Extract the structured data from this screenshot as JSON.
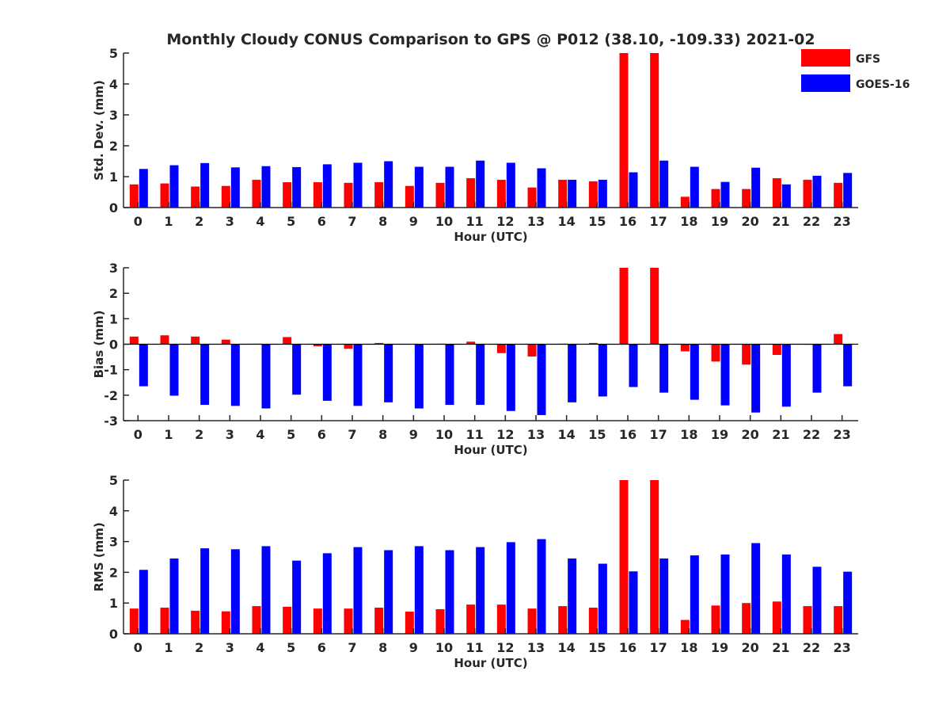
{
  "figure_title": "Monthly Cloudy CONUS Comparison to GPS @ P012 (38.10, -109.33) 2021-02",
  "legend": [
    {
      "name": "GFS",
      "color": "#ff0000"
    },
    {
      "name": "GOES-16",
      "color": "#0000ff"
    }
  ],
  "chart_data": [
    {
      "type": "bar",
      "xlabel": "Hour (UTC)",
      "ylabel": "Std. Dev. (mm)",
      "ylim": [
        0,
        5
      ],
      "yticks": [
        0,
        1,
        2,
        3,
        4,
        5
      ],
      "categories": [
        "0",
        "1",
        "2",
        "3",
        "4",
        "5",
        "6",
        "7",
        "8",
        "9",
        "10",
        "11",
        "12",
        "13",
        "14",
        "15",
        "16",
        "17",
        "18",
        "19",
        "20",
        "21",
        "22",
        "23"
      ],
      "series": [
        {
          "name": "GFS",
          "color": "#ff0000",
          "values": [
            0.75,
            0.78,
            0.68,
            0.7,
            0.9,
            0.82,
            0.82,
            0.8,
            0.82,
            0.7,
            0.8,
            0.95,
            0.9,
            0.65,
            0.9,
            0.85,
            5.0,
            5.0,
            0.35,
            0.6,
            0.6,
            0.95,
            0.9,
            0.8
          ]
        },
        {
          "name": "GOES-16",
          "color": "#0000ff",
          "values": [
            1.25,
            1.37,
            1.44,
            1.3,
            1.34,
            1.31,
            1.4,
            1.45,
            1.5,
            1.32,
            1.32,
            1.52,
            1.45,
            1.27,
            0.9,
            0.9,
            1.14,
            1.52,
            1.32,
            0.83,
            1.29,
            0.75,
            1.03,
            1.12
          ]
        }
      ]
    },
    {
      "type": "bar",
      "xlabel": "Hour (UTC)",
      "ylabel": "Bias (mm)",
      "ylim": [
        -3,
        3
      ],
      "yticks": [
        -3,
        -2,
        -1,
        0,
        1,
        2,
        3
      ],
      "categories": [
        "0",
        "1",
        "2",
        "3",
        "4",
        "5",
        "6",
        "7",
        "8",
        "9",
        "10",
        "11",
        "12",
        "13",
        "14",
        "15",
        "16",
        "17",
        "18",
        "19",
        "20",
        "21",
        "22",
        "23"
      ],
      "series": [
        {
          "name": "GFS",
          "color": "#ff0000",
          "values": [
            0.3,
            0.35,
            0.3,
            0.18,
            0.02,
            0.28,
            -0.08,
            -0.18,
            0.05,
            0.0,
            0.02,
            0.1,
            -0.35,
            -0.48,
            0.02,
            0.05,
            3.0,
            3.0,
            -0.28,
            -0.68,
            -0.8,
            -0.42,
            -0.02,
            0.4
          ]
        },
        {
          "name": "GOES-16",
          "color": "#0000ff",
          "values": [
            -1.65,
            -2.02,
            -2.38,
            -2.42,
            -2.52,
            -1.98,
            -2.22,
            -2.42,
            -2.28,
            -2.52,
            -2.38,
            -2.38,
            -2.62,
            -2.78,
            -2.28,
            -2.05,
            -1.68,
            -1.9,
            -2.18,
            -2.4,
            -2.68,
            -2.45,
            -1.9,
            -1.65
          ]
        }
      ]
    },
    {
      "type": "bar",
      "xlabel": "Hour (UTC)",
      "ylabel": "RMS (mm)",
      "ylim": [
        0,
        5
      ],
      "yticks": [
        0,
        1,
        2,
        3,
        4,
        5
      ],
      "categories": [
        "0",
        "1",
        "2",
        "3",
        "4",
        "5",
        "6",
        "7",
        "8",
        "9",
        "10",
        "11",
        "12",
        "13",
        "14",
        "15",
        "16",
        "17",
        "18",
        "19",
        "20",
        "21",
        "22",
        "23"
      ],
      "series": [
        {
          "name": "GFS",
          "color": "#ff0000",
          "values": [
            0.82,
            0.85,
            0.75,
            0.73,
            0.9,
            0.88,
            0.82,
            0.82,
            0.85,
            0.72,
            0.8,
            0.95,
            0.95,
            0.82,
            0.9,
            0.85,
            5.0,
            5.0,
            0.45,
            0.92,
            1.0,
            1.05,
            0.9,
            0.9
          ]
        },
        {
          "name": "GOES-16",
          "color": "#0000ff",
          "values": [
            2.08,
            2.45,
            2.78,
            2.75,
            2.85,
            2.38,
            2.62,
            2.82,
            2.72,
            2.85,
            2.72,
            2.82,
            2.98,
            3.08,
            2.45,
            2.28,
            2.03,
            2.45,
            2.55,
            2.58,
            2.95,
            2.58,
            2.18,
            2.02
          ]
        }
      ]
    }
  ]
}
